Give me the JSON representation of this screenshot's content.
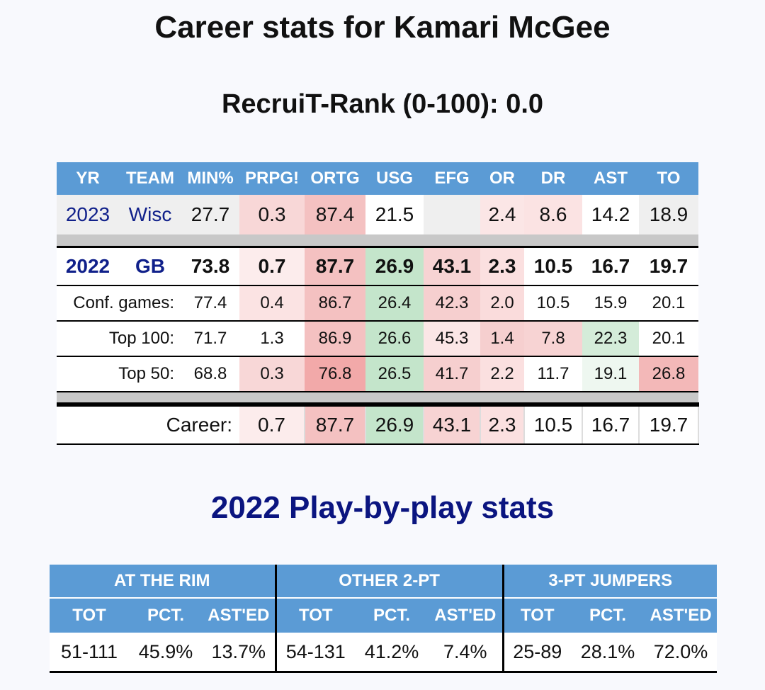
{
  "title": "Career stats for Kamari McGee",
  "subtitle": "RecruiT-Rank (0-100): 0.0",
  "career": {
    "headers": [
      "YR",
      "TEAM",
      "MIN%",
      "PRPG!",
      "ORTG",
      "USG",
      "EFG",
      "OR",
      "DR",
      "AST",
      "TO"
    ],
    "row_2023": {
      "yr": "2023",
      "team": "Wisc",
      "min": "27.7",
      "prpg": "0.3",
      "ortg": "87.4",
      "usg": "21.5",
      "efg": "",
      "or": "2.4",
      "dr": "8.6",
      "ast": "14.2",
      "to": "18.9"
    },
    "row_2022": {
      "yr": "2022",
      "team": "GB",
      "min": "73.8",
      "prpg": "0.7",
      "ortg": "87.7",
      "usg": "26.9",
      "efg": "43.1",
      "or": "2.3",
      "dr": "10.5",
      "ast": "16.7",
      "to": "19.7"
    },
    "splits": [
      {
        "label": "Conf. games:",
        "min": "77.4",
        "prpg": "0.4",
        "ortg": "86.7",
        "usg": "26.4",
        "efg": "42.3",
        "or": "2.0",
        "dr": "10.5",
        "ast": "15.9",
        "to": "20.1"
      },
      {
        "label": "Top 100:",
        "min": "71.7",
        "prpg": "1.3",
        "ortg": "86.9",
        "usg": "26.6",
        "efg": "45.3",
        "or": "1.4",
        "dr": "7.8",
        "ast": "22.3",
        "to": "20.1"
      },
      {
        "label": "Top 50:",
        "min": "68.8",
        "prpg": "0.3",
        "ortg": "76.8",
        "usg": "26.5",
        "efg": "41.7",
        "or": "2.2",
        "dr": "11.7",
        "ast": "19.1",
        "to": "26.8"
      }
    ],
    "career_row": {
      "label": "Career:",
      "prpg": "0.7",
      "ortg": "87.7",
      "usg": "26.9",
      "efg": "43.1",
      "or": "2.3",
      "dr": "10.5",
      "ast": "16.7",
      "to": "19.7"
    }
  },
  "pbp": {
    "title": "2022 Play-by-play stats",
    "groups": [
      "AT THE RIM",
      "OTHER 2-PT",
      "3-PT JUMPERS"
    ],
    "sub_headers": [
      "TOT",
      "PCT.",
      "AST'ED",
      "TOT",
      "PCT.",
      "AST'ED",
      "TOT",
      "PCT.",
      "AST'ED"
    ],
    "values": [
      "51-111",
      "45.9%",
      "13.7%",
      "54-131",
      "41.2%",
      "7.4%",
      "25-89",
      "28.1%",
      "72.0%"
    ]
  },
  "colors": {
    "header_blue": "#5b9bd5",
    "team_navy": "#10208a",
    "pbp_title_navy": "#0b1580"
  }
}
